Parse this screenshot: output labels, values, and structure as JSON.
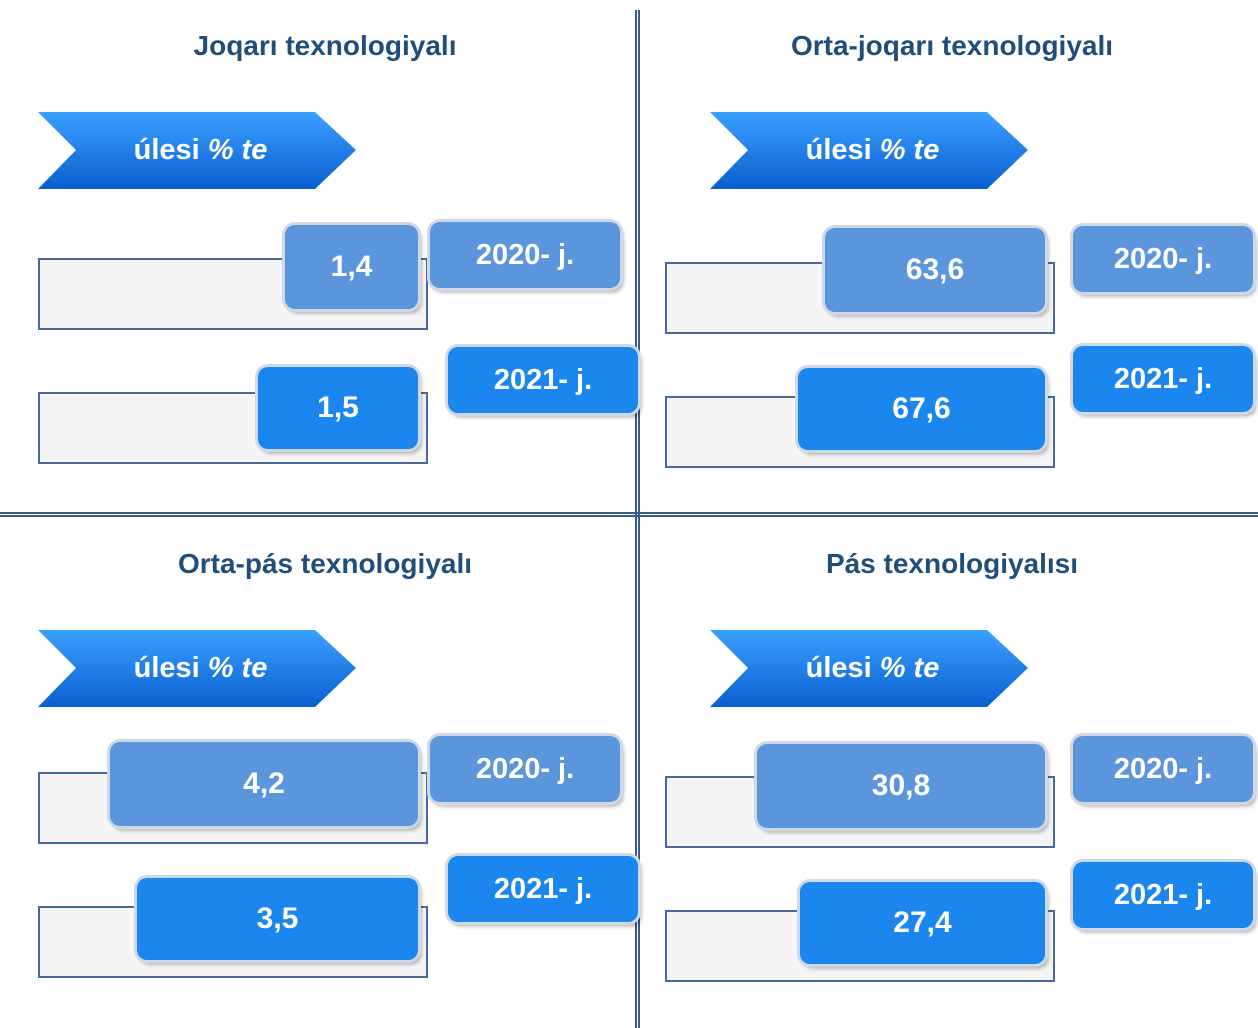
{
  "panels": [
    {
      "title": "Joqarı texnologiyalı",
      "label": "úlesi",
      "unit": "% te",
      "rows": [
        {
          "value": "1,4",
          "year": "2020- j."
        },
        {
          "value": "1,5",
          "year": "2021- j."
        }
      ]
    },
    {
      "title": "Orta-joqarı texnologiyalı",
      "label": "úlesi",
      "unit": "% te",
      "rows": [
        {
          "value": "63,6",
          "year": "2020- j."
        },
        {
          "value": "67,6",
          "year": "2021- j."
        }
      ]
    },
    {
      "title": "Orta-pás texnologiyalı",
      "label": "úlesi",
      "unit": "% te",
      "rows": [
        {
          "value": "4,2",
          "year": "2020- j."
        },
        {
          "value": "3,5",
          "year": "2021- j."
        }
      ]
    },
    {
      "title": "Pás texnologiyalısı",
      "label": "úlesi",
      "unit": "% te",
      "rows": [
        {
          "value": "30,8",
          "year": "2020- j."
        },
        {
          "value": "27,4",
          "year": "2021- j."
        }
      ]
    }
  ]
}
